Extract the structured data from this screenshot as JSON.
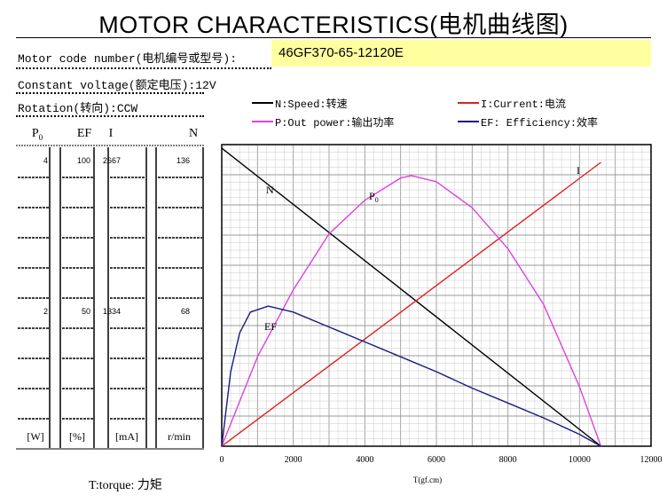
{
  "title": "MOTOR CHARACTERISTICS(电机曲线图)",
  "motor_code_label": "Motor code number(电机编号或型号):",
  "motor_code_value": "46GF370-65-12120E",
  "constant_voltage": "Constant voltage(额定电压):12V",
  "rotation": "Rotation(转向):CCW",
  "legend": {
    "speed": "N:Speed:转速",
    "current": "I:Current:电流",
    "power": "P:Out power:输出功率",
    "efficiency": "EF: Efficiency:效率"
  },
  "columns": [
    {
      "header": "P",
      "header_sub": "0",
      "top_value": "4",
      "mid_value": "2",
      "unit": "[W]"
    },
    {
      "header": "EF",
      "header_sub": "",
      "top_value": "100",
      "mid_value": "50",
      "unit": "[%]"
    },
    {
      "header": "I",
      "header_sub": "",
      "top_value": "2667",
      "mid_value": "1334",
      "unit": "[mA]"
    },
    {
      "header": "N",
      "header_sub": "",
      "top_value": "136",
      "mid_value": "68",
      "unit": "r/min"
    }
  ],
  "torque_label": "T:torque: 力矩",
  "colors": {
    "speed": "#000000",
    "current": "#e0201e",
    "power": "#e040e0",
    "efficiency": "#1a1a80",
    "highlight": "#ffffa0"
  },
  "chart_data": {
    "type": "line",
    "xlabel": "T(gf.cm)",
    "xlim": [
      0,
      12000
    ],
    "x_ticks": [
      0,
      2000,
      4000,
      6000,
      8000,
      10000,
      12000
    ],
    "grid": true,
    "series": [
      {
        "name": "N",
        "unit": "r/min",
        "x": [
          0,
          10600
        ],
        "values": [
          136,
          0
        ]
      },
      {
        "name": "I",
        "unit": "mA",
        "x": [
          0,
          10600
        ],
        "values": [
          0,
          2540
        ]
      },
      {
        "name": "P0",
        "unit": "W",
        "x": [
          0,
          1000,
          2000,
          3000,
          4000,
          5000,
          5300,
          6000,
          7000,
          8000,
          9000,
          10000,
          10600
        ],
        "values": [
          0,
          1.2,
          2.1,
          2.85,
          3.3,
          3.6,
          3.63,
          3.55,
          3.2,
          2.65,
          1.9,
          0.8,
          0
        ]
      },
      {
        "name": "EF",
        "unit": "%",
        "x": [
          0,
          250,
          500,
          800,
          1300,
          2000,
          3000,
          4000,
          5000,
          6000,
          7000,
          8000,
          9000,
          10000,
          10600
        ],
        "values": [
          0,
          25,
          38,
          45,
          47,
          45,
          40,
          35,
          30,
          25,
          19.5,
          14.5,
          9.5,
          4,
          0
        ]
      }
    ],
    "curve_labels": [
      "N",
      "I",
      "P0",
      "EF"
    ]
  }
}
